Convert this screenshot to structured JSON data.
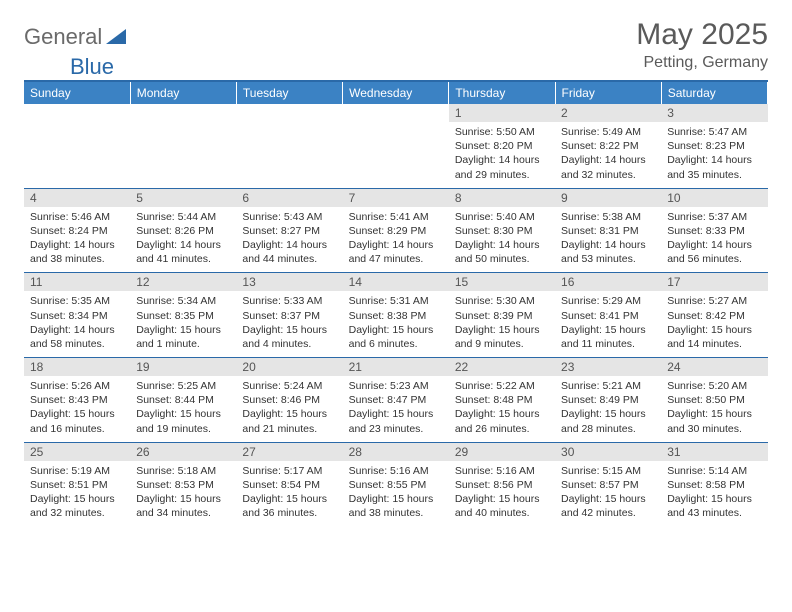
{
  "logo": {
    "text1": "General",
    "text2": "Blue",
    "shape_color": "#2a69a8"
  },
  "title": "May 2025",
  "location": "Petting, Germany",
  "colors": {
    "header_bg": "#3b82c4",
    "header_text": "#ffffff",
    "rule": "#2a69a8",
    "daynum_bg": "#e5e5e5",
    "body_text": "#333333",
    "logo_gray": "#6a6a6a"
  },
  "day_headers": [
    "Sunday",
    "Monday",
    "Tuesday",
    "Wednesday",
    "Thursday",
    "Friday",
    "Saturday"
  ],
  "weeks": [
    [
      {
        "n": "",
        "sr": "",
        "ss": "",
        "dl": ""
      },
      {
        "n": "",
        "sr": "",
        "ss": "",
        "dl": ""
      },
      {
        "n": "",
        "sr": "",
        "ss": "",
        "dl": ""
      },
      {
        "n": "",
        "sr": "",
        "ss": "",
        "dl": ""
      },
      {
        "n": "1",
        "sr": "Sunrise: 5:50 AM",
        "ss": "Sunset: 8:20 PM",
        "dl": "Daylight: 14 hours and 29 minutes."
      },
      {
        "n": "2",
        "sr": "Sunrise: 5:49 AM",
        "ss": "Sunset: 8:22 PM",
        "dl": "Daylight: 14 hours and 32 minutes."
      },
      {
        "n": "3",
        "sr": "Sunrise: 5:47 AM",
        "ss": "Sunset: 8:23 PM",
        "dl": "Daylight: 14 hours and 35 minutes."
      }
    ],
    [
      {
        "n": "4",
        "sr": "Sunrise: 5:46 AM",
        "ss": "Sunset: 8:24 PM",
        "dl": "Daylight: 14 hours and 38 minutes."
      },
      {
        "n": "5",
        "sr": "Sunrise: 5:44 AM",
        "ss": "Sunset: 8:26 PM",
        "dl": "Daylight: 14 hours and 41 minutes."
      },
      {
        "n": "6",
        "sr": "Sunrise: 5:43 AM",
        "ss": "Sunset: 8:27 PM",
        "dl": "Daylight: 14 hours and 44 minutes."
      },
      {
        "n": "7",
        "sr": "Sunrise: 5:41 AM",
        "ss": "Sunset: 8:29 PM",
        "dl": "Daylight: 14 hours and 47 minutes."
      },
      {
        "n": "8",
        "sr": "Sunrise: 5:40 AM",
        "ss": "Sunset: 8:30 PM",
        "dl": "Daylight: 14 hours and 50 minutes."
      },
      {
        "n": "9",
        "sr": "Sunrise: 5:38 AM",
        "ss": "Sunset: 8:31 PM",
        "dl": "Daylight: 14 hours and 53 minutes."
      },
      {
        "n": "10",
        "sr": "Sunrise: 5:37 AM",
        "ss": "Sunset: 8:33 PM",
        "dl": "Daylight: 14 hours and 56 minutes."
      }
    ],
    [
      {
        "n": "11",
        "sr": "Sunrise: 5:35 AM",
        "ss": "Sunset: 8:34 PM",
        "dl": "Daylight: 14 hours and 58 minutes."
      },
      {
        "n": "12",
        "sr": "Sunrise: 5:34 AM",
        "ss": "Sunset: 8:35 PM",
        "dl": "Daylight: 15 hours and 1 minute."
      },
      {
        "n": "13",
        "sr": "Sunrise: 5:33 AM",
        "ss": "Sunset: 8:37 PM",
        "dl": "Daylight: 15 hours and 4 minutes."
      },
      {
        "n": "14",
        "sr": "Sunrise: 5:31 AM",
        "ss": "Sunset: 8:38 PM",
        "dl": "Daylight: 15 hours and 6 minutes."
      },
      {
        "n": "15",
        "sr": "Sunrise: 5:30 AM",
        "ss": "Sunset: 8:39 PM",
        "dl": "Daylight: 15 hours and 9 minutes."
      },
      {
        "n": "16",
        "sr": "Sunrise: 5:29 AM",
        "ss": "Sunset: 8:41 PM",
        "dl": "Daylight: 15 hours and 11 minutes."
      },
      {
        "n": "17",
        "sr": "Sunrise: 5:27 AM",
        "ss": "Sunset: 8:42 PM",
        "dl": "Daylight: 15 hours and 14 minutes."
      }
    ],
    [
      {
        "n": "18",
        "sr": "Sunrise: 5:26 AM",
        "ss": "Sunset: 8:43 PM",
        "dl": "Daylight: 15 hours and 16 minutes."
      },
      {
        "n": "19",
        "sr": "Sunrise: 5:25 AM",
        "ss": "Sunset: 8:44 PM",
        "dl": "Daylight: 15 hours and 19 minutes."
      },
      {
        "n": "20",
        "sr": "Sunrise: 5:24 AM",
        "ss": "Sunset: 8:46 PM",
        "dl": "Daylight: 15 hours and 21 minutes."
      },
      {
        "n": "21",
        "sr": "Sunrise: 5:23 AM",
        "ss": "Sunset: 8:47 PM",
        "dl": "Daylight: 15 hours and 23 minutes."
      },
      {
        "n": "22",
        "sr": "Sunrise: 5:22 AM",
        "ss": "Sunset: 8:48 PM",
        "dl": "Daylight: 15 hours and 26 minutes."
      },
      {
        "n": "23",
        "sr": "Sunrise: 5:21 AM",
        "ss": "Sunset: 8:49 PM",
        "dl": "Daylight: 15 hours and 28 minutes."
      },
      {
        "n": "24",
        "sr": "Sunrise: 5:20 AM",
        "ss": "Sunset: 8:50 PM",
        "dl": "Daylight: 15 hours and 30 minutes."
      }
    ],
    [
      {
        "n": "25",
        "sr": "Sunrise: 5:19 AM",
        "ss": "Sunset: 8:51 PM",
        "dl": "Daylight: 15 hours and 32 minutes."
      },
      {
        "n": "26",
        "sr": "Sunrise: 5:18 AM",
        "ss": "Sunset: 8:53 PM",
        "dl": "Daylight: 15 hours and 34 minutes."
      },
      {
        "n": "27",
        "sr": "Sunrise: 5:17 AM",
        "ss": "Sunset: 8:54 PM",
        "dl": "Daylight: 15 hours and 36 minutes."
      },
      {
        "n": "28",
        "sr": "Sunrise: 5:16 AM",
        "ss": "Sunset: 8:55 PM",
        "dl": "Daylight: 15 hours and 38 minutes."
      },
      {
        "n": "29",
        "sr": "Sunrise: 5:16 AM",
        "ss": "Sunset: 8:56 PM",
        "dl": "Daylight: 15 hours and 40 minutes."
      },
      {
        "n": "30",
        "sr": "Sunrise: 5:15 AM",
        "ss": "Sunset: 8:57 PM",
        "dl": "Daylight: 15 hours and 42 minutes."
      },
      {
        "n": "31",
        "sr": "Sunrise: 5:14 AM",
        "ss": "Sunset: 8:58 PM",
        "dl": "Daylight: 15 hours and 43 minutes."
      }
    ]
  ]
}
